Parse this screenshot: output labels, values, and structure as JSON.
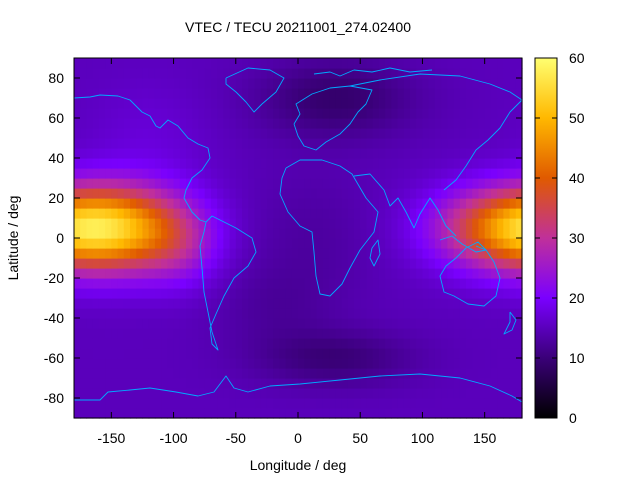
{
  "chart_data": {
    "type": "heatmap",
    "title": "VTEC / TECU 20211001_274.02400",
    "xlabel": "Longitude / deg",
    "ylabel": "Latitude / deg",
    "xlim": [
      -180,
      180
    ],
    "ylim": [
      -90,
      90
    ],
    "xticks": [
      -150,
      -100,
      -50,
      0,
      50,
      100,
      150
    ],
    "yticks": [
      -80,
      -60,
      -40,
      -20,
      0,
      20,
      40,
      60,
      80
    ],
    "colorbar": {
      "range": [
        0,
        60
      ],
      "ticks": [
        0,
        10,
        20,
        30,
        40,
        50,
        60
      ],
      "palette": [
        "#000000",
        "#3a0078",
        "#7a00ff",
        "#c0309a",
        "#e05a00",
        "#ffb800",
        "#ffff70"
      ]
    },
    "grid": false,
    "coastline_color": "#00aaff",
    "blobs": [
      {
        "lon": -145,
        "lat": 5,
        "sx": 40,
        "sy": 15,
        "amp": 30
      },
      {
        "lon": 165,
        "lat": 5,
        "sx": 40,
        "sy": 14,
        "amp": 22
      },
      {
        "lon": -95,
        "lat": -5,
        "sx": 22,
        "sy": 14,
        "amp": 6
      },
      {
        "lon": 30,
        "lat": -60,
        "sx": 45,
        "sy": 10,
        "amp": -5
      },
      {
        "lon": 30,
        "lat": 70,
        "sx": 45,
        "sy": 14,
        "amp": -6
      },
      {
        "lon": -20,
        "lat": -35,
        "sx": 35,
        "sy": 15,
        "amp": -2
      },
      {
        "lon": 10,
        "lat": 0,
        "sx": 40,
        "sy": 25,
        "amp": -2
      },
      {
        "lon": -120,
        "lat": 50,
        "sx": 35,
        "sy": 20,
        "amp": 2
      }
    ],
    "base_value": 15
  }
}
